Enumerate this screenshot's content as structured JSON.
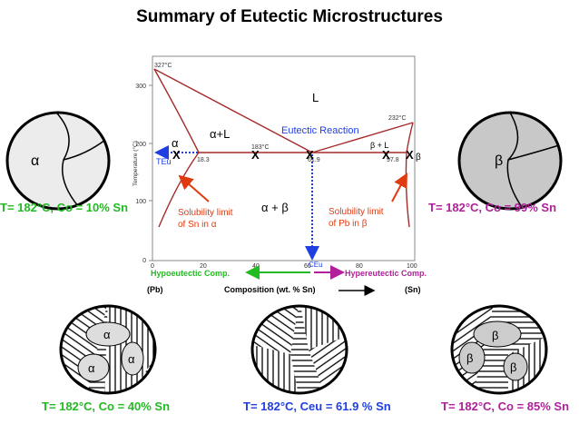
{
  "title": "Summary of Eutectic Microstructures",
  "diagram": {
    "ylabel": "Temperature (°C)",
    "y_ticks": [
      "0",
      "100",
      "200",
      "300"
    ],
    "x_ticks": [
      "0",
      "20",
      "40",
      "60",
      "80",
      "100"
    ],
    "temps": {
      "pb_melt": "327°C",
      "sn_melt": "232°C",
      "eutectic": "183°C"
    },
    "comps": {
      "alpha_limit": "18.3",
      "eutectic": "61.9",
      "beta_limit": "97.8"
    },
    "regions": {
      "liquid": "L",
      "alpha": "α",
      "alpha_l": "α+L",
      "beta_l": "β + L",
      "beta": "β",
      "alpha_beta": "α + β"
    },
    "eutectic_reaction": "Eutectic Reaction",
    "teu": "TEu",
    "ceu": "CEu",
    "marker": "X",
    "solubility_sn": [
      "Solubility limit",
      "of Sn in α"
    ],
    "solubility_pb": [
      "Solubility limit",
      "of Pb in β"
    ],
    "hypo": "Hypoeutectic Comp.",
    "hyper": "Hypereutectic Comp.",
    "pb": "(Pb)",
    "sn": "(Sn)",
    "composition": "Composition (wt. % Sn)"
  },
  "micro_labels": {
    "alpha": "α",
    "beta": "β"
  },
  "captions": {
    "c10": "T= 182°C, Co = 10% Sn",
    "c99": "T= 182°C,  Co = 99% Sn",
    "c40": "T= 182°C, Co = 40% Sn",
    "c619": "T= 182°C, Ceu = 61.9 % Sn",
    "c85": "T= 182°C,  Co = 85% Sn"
  },
  "colors": {
    "phase_line": "#a52a2a",
    "arrow": "#e03a10",
    "green": "#22bb22",
    "blue": "#1f3fe0",
    "magenta": "#b0209a"
  }
}
